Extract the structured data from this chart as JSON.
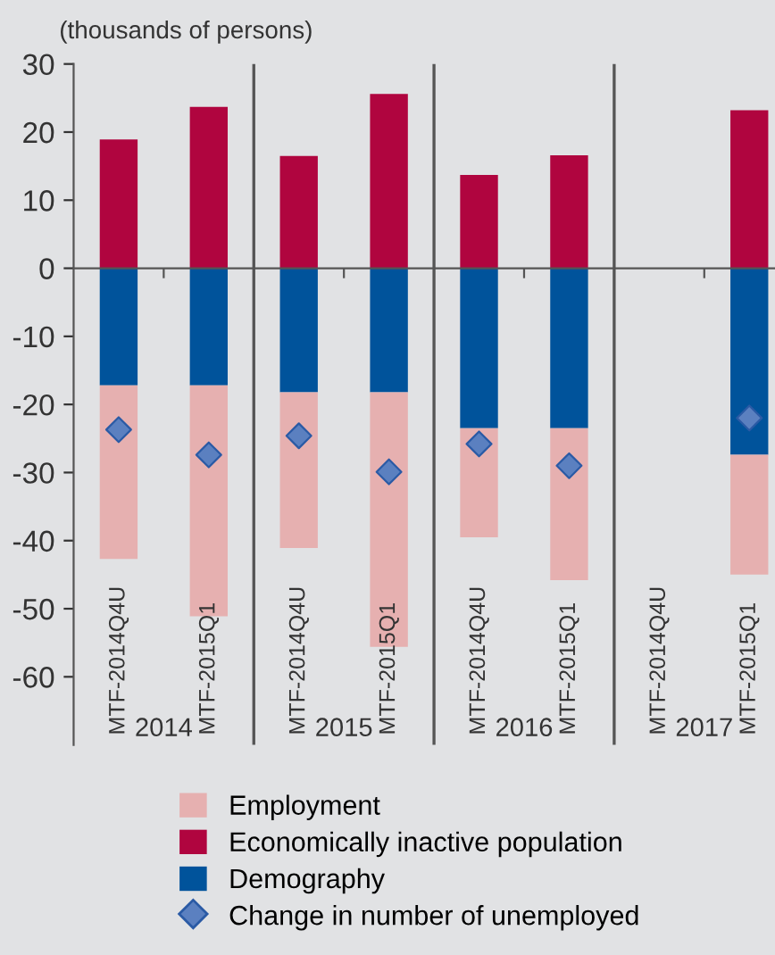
{
  "chart_data": {
    "type": "bar",
    "stacked": true,
    "ylabel": "(thousands of persons)",
    "categories": [
      "MTF-2014Q4U",
      "MTF-2015Q1",
      "MTF-2014Q4U",
      "MTF-2015Q1",
      "MTF-2014Q4U",
      "MTF-2015Q1",
      "MTF-2014Q4U",
      "MTF-2015Q1"
    ],
    "series": [
      {
        "name": "Economically inactive population",
        "color": "#b0053f",
        "values": [
          18.9,
          23.7,
          16.5,
          25.6,
          13.7,
          16.6,
          null,
          23.2
        ]
      },
      {
        "name": "Demography",
        "color": "#00539b",
        "values": [
          -17.2,
          -17.2,
          -18.2,
          -18.2,
          -23.5,
          -23.5,
          null,
          -27.4
        ]
      },
      {
        "name": "Employment",
        "color": "#e6b0b0",
        "values": [
          -25.5,
          -33.9,
          -22.9,
          -37.4,
          -16.0,
          -22.3,
          null,
          -17.6
        ]
      },
      {
        "name": "Change in number of unemployed",
        "type": "scatter",
        "color": "#5b80c0",
        "values": [
          -23.7,
          -27.4,
          -24.6,
          -29.9,
          -25.8,
          -29.0,
          null,
          -22.0
        ]
      }
    ],
    "marker": "diamond",
    "annotations": [
      "2014",
      "2015",
      "2016",
      "2017"
    ],
    "ylim": [
      -70,
      30
    ],
    "yticks": [
      30,
      20,
      10,
      0,
      -10,
      -20,
      -30,
      -40,
      -50,
      -60
    ],
    "grid": false,
    "legend": "bottom"
  }
}
